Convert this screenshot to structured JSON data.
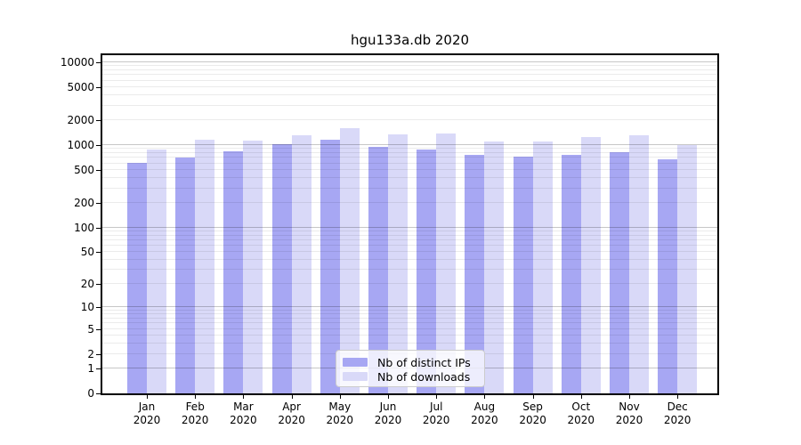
{
  "title": "hgu133a.db 2020",
  "chart_data": {
    "type": "bar",
    "title": "hgu133a.db 2020",
    "categories": [
      "Jan 2020",
      "Feb 2020",
      "Mar 2020",
      "Apr 2020",
      "May 2020",
      "Jun 2020",
      "Jul 2020",
      "Aug 2020",
      "Sep 2020",
      "Oct 2020",
      "Nov 2020",
      "Dec 2020"
    ],
    "series": [
      {
        "name": "Nb of distinct IPs",
        "color": "#a7a7f3",
        "values": [
          610,
          715,
          850,
          1030,
          1170,
          950,
          890,
          770,
          730,
          770,
          810,
          680
        ]
      },
      {
        "name": "Nb of downloads",
        "color": "#d9d9f8",
        "values": [
          890,
          1170,
          1120,
          1300,
          1600,
          1350,
          1370,
          1090,
          1110,
          1260,
          1300,
          1010
        ]
      }
    ],
    "xlabel": "",
    "ylabel": "",
    "yscale": "log1p",
    "yticks": [
      0,
      1,
      2,
      5,
      10,
      20,
      50,
      100,
      200,
      500,
      1000,
      2000,
      5000,
      10000
    ],
    "ylim": [
      0,
      12800
    ],
    "grid": "horizontal",
    "grid_major_color": "#c8c8c8",
    "grid_minor_color": "#ececec",
    "legend_position": "inside-bottom-center",
    "axis_color": "#000000",
    "background_color": "#ffffff"
  }
}
